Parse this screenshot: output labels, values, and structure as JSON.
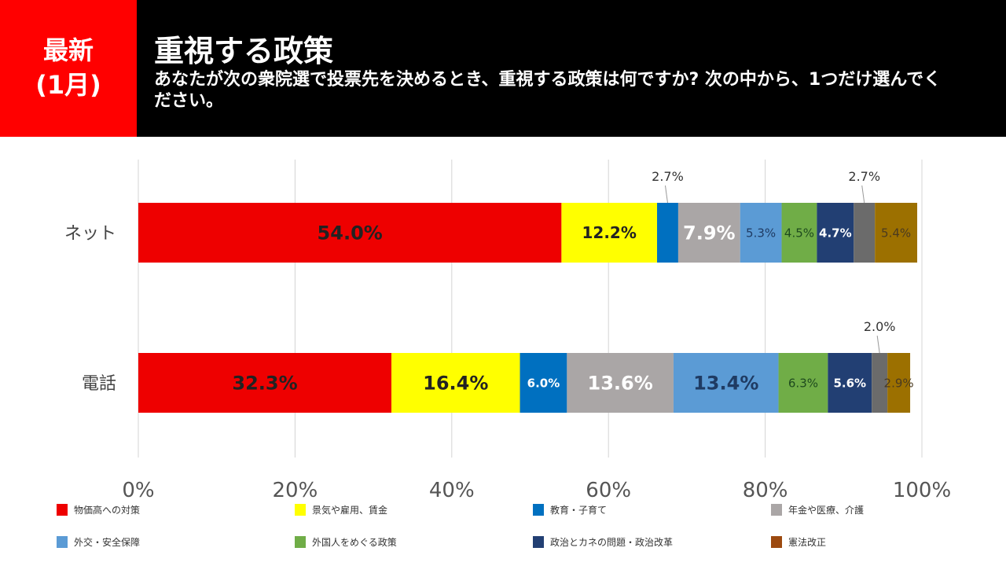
{
  "header": {
    "badge_line1": "最新",
    "badge_line2": "(1月)",
    "title": "重視する政策",
    "subtitle": "あなたが次の衆院選で投票先を決めるとき、重視する政策は何ですか? 次の中から、1つだけ選んでください。"
  },
  "chart_data": {
    "type": "bar",
    "orientation": "horizontal",
    "stacked": true,
    "categories": [
      "ネット",
      "電話"
    ],
    "xlim": [
      0,
      100
    ],
    "xticks": [
      "0%",
      "20%",
      "40%",
      "60%",
      "80%",
      "100%"
    ],
    "grid": true,
    "legend_position": "bottom",
    "series": [
      {
        "name": "物価高への対策",
        "color": "#ee0000",
        "label_color": "#222",
        "values": [
          54.0,
          32.3
        ],
        "labels": [
          "54.0%",
          "32.3%"
        ]
      },
      {
        "name": "景気や雇用、賃金",
        "color": "#ffff00",
        "label_color": "#222",
        "values": [
          12.2,
          16.4
        ],
        "labels": [
          "12.2%",
          "16.4%"
        ]
      },
      {
        "name": "教育・子育て",
        "color": "#0070c0",
        "label_color": "#fff",
        "values": [
          2.7,
          6.0
        ],
        "labels": [
          "2.7%",
          "6.0%"
        ]
      },
      {
        "name": "年金や医療、介護",
        "color": "#aaa6a6",
        "label_color": "#fff",
        "values": [
          7.9,
          13.6
        ],
        "labels": [
          "7.9%",
          "13.6%"
        ]
      },
      {
        "name": "外交・安全保障",
        "color": "#5b9bd5",
        "label_color": "#1f3b63",
        "values": [
          5.3,
          13.4
        ],
        "labels": [
          "5.3%",
          "13.4%"
        ]
      },
      {
        "name": "外国人をめぐる政策",
        "color": "#70ad47",
        "label_color": "#1e4a1e",
        "values": [
          4.5,
          6.3
        ],
        "labels": [
          "4.5%",
          "6.3%"
        ]
      },
      {
        "name": "政治とカネの問題・政治改革",
        "color": "#223f73",
        "label_color": "#fff",
        "values": [
          4.7,
          5.6
        ],
        "labels": [
          "4.7%",
          "5.6%"
        ]
      },
      {
        "color": "#6b6b6b",
        "label_color": "#333",
        "values": [
          2.7,
          2.0
        ],
        "labels": [
          "2.7%",
          "2.0%"
        ]
      },
      {
        "name": "憲法改正",
        "color": "#9c7000",
        "label_color": "#4a3a20",
        "legend_color": "#9c4a10",
        "values": [
          5.4,
          2.9
        ],
        "labels": [
          "5.4%",
          "2.9%"
        ]
      }
    ]
  }
}
